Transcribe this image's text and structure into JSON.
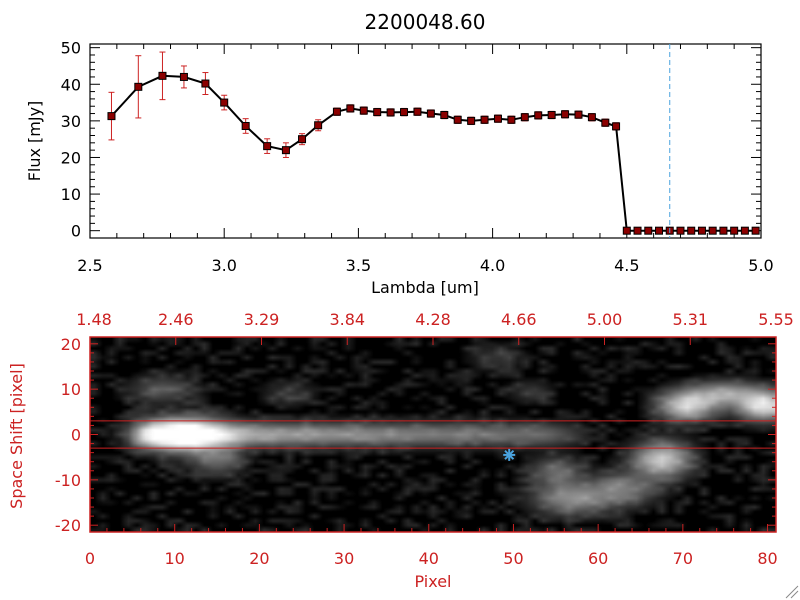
{
  "chart_data": [
    {
      "type": "line",
      "title": "2200048.60",
      "xlabel": "Lambda [um]",
      "ylabel": "Flux [mJy]",
      "xlim": [
        2.5,
        5.0
      ],
      "ylim": [
        -2,
        51
      ],
      "x_ticks": [
        "2.5",
        "3.0",
        "3.5",
        "4.0",
        "4.5",
        "5.0"
      ],
      "y_ticks": [
        "0",
        "10",
        "20",
        "30",
        "40",
        "50"
      ],
      "grid": false,
      "colors": {
        "line": "#000000",
        "marker": "#8b0000",
        "errorbar": "#cc2222",
        "vline": "#4aa3df"
      },
      "vline_x": 4.66,
      "series": [
        {
          "x": [
            2.58,
            2.68,
            2.77,
            2.85,
            2.93,
            3.0,
            3.08,
            3.16,
            3.23,
            3.29,
            3.35,
            3.42,
            3.47,
            3.52,
            3.57,
            3.62,
            3.67,
            3.72,
            3.77,
            3.82,
            3.87,
            3.92,
            3.97,
            4.02,
            4.07,
            4.12,
            4.17,
            4.22,
            4.27,
            4.32,
            4.37,
            4.42,
            4.46,
            4.5,
            4.54,
            4.58,
            4.62,
            4.66,
            4.7,
            4.74,
            4.78,
            4.82,
            4.86,
            4.9,
            4.94,
            4.98
          ],
          "y": [
            31.3,
            39.3,
            42.3,
            42.0,
            40.2,
            35.0,
            28.6,
            23.1,
            22.0,
            25.0,
            28.8,
            32.5,
            33.4,
            32.8,
            32.4,
            32.3,
            32.4,
            32.5,
            32.0,
            31.6,
            30.3,
            30.0,
            30.3,
            30.6,
            30.3,
            31.0,
            31.5,
            31.6,
            31.8,
            31.7,
            31.0,
            29.5,
            28.5,
            0,
            0,
            0,
            0,
            0,
            0,
            0,
            0,
            0,
            0,
            0,
            0,
            0
          ],
          "yerr": [
            6.5,
            8.5,
            6.5,
            3.0,
            3.0,
            2.0,
            2.0,
            2.0,
            2.0,
            1.5,
            1.5,
            1.0,
            1.0,
            1.0,
            1.0,
            1.0,
            1.0,
            1.0,
            1.0,
            1.0,
            1.0,
            1.0,
            1.0,
            1.0,
            1.0,
            1.0,
            1.0,
            1.0,
            1.0,
            1.0,
            1.0,
            1.0,
            1.0,
            0,
            0,
            0,
            0,
            0,
            0,
            0,
            0,
            0,
            0,
            0,
            0,
            0
          ]
        }
      ]
    },
    {
      "type": "heatmap",
      "xlabel": "Pixel",
      "ylabel": "Space Shift [pixel]",
      "xlim": [
        0,
        81
      ],
      "ylim": [
        -21.5,
        21.5
      ],
      "x_ticks": [
        "0",
        "10",
        "20",
        "30",
        "40",
        "50",
        "60",
        "70",
        "80"
      ],
      "y_ticks": [
        "-20",
        "-10",
        "0",
        "10",
        "20"
      ],
      "top_axis_ticks": [
        "1.48",
        "2.46",
        "3.29",
        "3.84",
        "4.28",
        "4.66",
        "5.00",
        "5.31",
        "5.55"
      ],
      "hlines": [
        3,
        -3
      ],
      "marker": {
        "label": "star",
        "x": 49.5,
        "y": -4.5
      },
      "colors": {
        "axis": "#cc2222",
        "hline": "#cc2222",
        "marker": "#4aa3df"
      },
      "sources": [
        {
          "name": "trace",
          "x_start": 6,
          "x_end": 56,
          "y": 0,
          "x_decay": 40,
          "y_width": 1.7,
          "amp": 0.6
        },
        {
          "name": "peak",
          "x": 11,
          "y": 0,
          "sx": 3.2,
          "sy": 2.4,
          "amp": 1.0
        },
        {
          "name": "blob-a",
          "x": 8.5,
          "y": 10,
          "sx": 2.5,
          "sy": 2.0,
          "amp": 0.22
        },
        {
          "name": "blob-b",
          "x": 15,
          "y": -5.5,
          "sx": 2.0,
          "sy": 2.2,
          "amp": 0.3
        },
        {
          "name": "blob-c",
          "x": 23.5,
          "y": 9,
          "sx": 2.0,
          "sy": 1.8,
          "amp": 0.12
        },
        {
          "name": "blob-d",
          "x": 57,
          "y": -14,
          "sx": 3.0,
          "sy": 2.4,
          "amp": 0.45
        },
        {
          "name": "blob-e",
          "x": 63,
          "y": -12,
          "sx": 2.5,
          "sy": 2.4,
          "amp": 0.35
        },
        {
          "name": "blob-f",
          "x": 67.5,
          "y": -5.5,
          "sx": 2.2,
          "sy": 2.6,
          "amp": 0.7
        },
        {
          "name": "blob-g",
          "x": 70.5,
          "y": 6.5,
          "sx": 2.2,
          "sy": 2.2,
          "amp": 0.75
        },
        {
          "name": "blob-h",
          "x": 79.5,
          "y": 6.5,
          "sx": 2.0,
          "sy": 2.2,
          "amp": 0.85
        },
        {
          "name": "blob-i",
          "x": 75,
          "y": 9,
          "sx": 2.5,
          "sy": 1.8,
          "amp": 0.5
        },
        {
          "name": "blob-j",
          "x": 55,
          "y": -8,
          "sx": 2.0,
          "sy": 2.0,
          "amp": 0.3
        },
        {
          "name": "blob-k",
          "x": 48,
          "y": 17,
          "sx": 2.0,
          "sy": 1.8,
          "amp": 0.12
        },
        {
          "name": "blob-l",
          "x": 52,
          "y": 9.5,
          "sx": 1.6,
          "sy": 1.6,
          "amp": 0.12
        }
      ]
    }
  ]
}
